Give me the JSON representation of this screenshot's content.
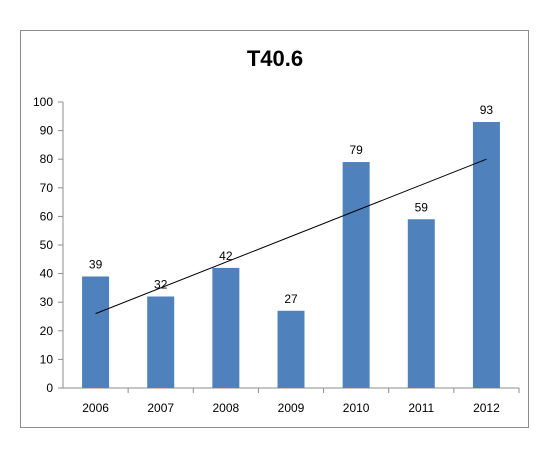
{
  "chart_data": {
    "type": "bar",
    "title": "T40.6",
    "categories": [
      "2006",
      "2007",
      "2008",
      "2009",
      "2010",
      "2011",
      "2012"
    ],
    "values": [
      39,
      32,
      42,
      27,
      79,
      59,
      93
    ],
    "ylim": [
      0,
      100
    ],
    "yticks": [
      "0",
      "10",
      "20",
      "30",
      "40",
      "50",
      "60",
      "70",
      "80",
      "90",
      "100"
    ],
    "xlabel": "",
    "ylabel": "",
    "bar_color": "#4f81bd",
    "grid": false,
    "legend": "none",
    "trendline": {
      "type": "linear",
      "start": 26,
      "end": 80,
      "color": "#000000"
    }
  }
}
